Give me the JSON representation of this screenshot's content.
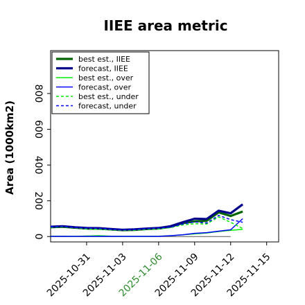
{
  "chart_data": {
    "type": "line",
    "title": "IIEE area metric",
    "xlabel": "",
    "ylabel": "Area (1000km2)",
    "x": [
      "2025-10-28",
      "2025-10-31",
      "2025-11-03",
      "2025-11-06",
      "2025-11-09",
      "2025-11-12"
    ],
    "xticks": [
      "2025-10-31",
      "2025-11-03",
      "2025-11-06",
      "2025-11-09",
      "2025-11-12",
      "2025-11-15"
    ],
    "xtick_colors": [
      "#000000",
      "#000000",
      "#2e8b2e",
      "#000000",
      "#000000",
      "#000000"
    ],
    "xlim": [
      "2025-10-28",
      "2025-11-16"
    ],
    "ylim": [
      -30,
      1040
    ],
    "yticks": [
      0,
      200,
      400,
      600,
      800
    ],
    "grid": false,
    "legend_position": "top-left",
    "reference_line": {
      "y": 0,
      "color": "#555555"
    },
    "series": [
      {
        "name": "best est., IIEE",
        "color": "#006400",
        "style": "solid",
        "width": "thick",
        "points": [
          [
            "2025-10-28",
            52
          ],
          [
            "2025-10-29",
            55
          ],
          [
            "2025-10-30",
            50
          ],
          [
            "2025-10-31",
            45
          ],
          [
            "2025-11-01",
            44
          ],
          [
            "2025-11-02",
            40
          ],
          [
            "2025-11-03",
            36
          ],
          [
            "2025-11-04",
            37
          ],
          [
            "2025-11-05",
            42
          ],
          [
            "2025-11-06",
            45
          ],
          [
            "2025-11-07",
            55
          ],
          [
            "2025-11-08",
            75
          ],
          [
            "2025-11-09",
            85
          ],
          [
            "2025-11-10",
            88
          ],
          [
            "2025-11-11",
            135
          ],
          [
            "2025-11-12",
            115
          ],
          [
            "2025-11-13",
            140
          ]
        ]
      },
      {
        "name": "forecast, IIEE",
        "color": "#00008b",
        "style": "solid",
        "width": "thick",
        "points": [
          [
            "2025-10-28",
            55
          ],
          [
            "2025-10-29",
            58
          ],
          [
            "2025-10-30",
            52
          ],
          [
            "2025-10-31",
            48
          ],
          [
            "2025-11-01",
            47
          ],
          [
            "2025-11-02",
            42
          ],
          [
            "2025-11-03",
            38
          ],
          [
            "2025-11-04",
            40
          ],
          [
            "2025-11-05",
            45
          ],
          [
            "2025-11-06",
            48
          ],
          [
            "2025-11-07",
            58
          ],
          [
            "2025-11-08",
            80
          ],
          [
            "2025-11-09",
            100
          ],
          [
            "2025-11-10",
            98
          ],
          [
            "2025-11-11",
            145
          ],
          [
            "2025-11-12",
            130
          ],
          [
            "2025-11-13",
            180
          ]
        ]
      },
      {
        "name": "best est., over",
        "color": "#00ee00",
        "style": "solid",
        "width": "thin",
        "points": [
          [
            "2025-10-28",
            2
          ],
          [
            "2025-10-29",
            2
          ],
          [
            "2025-10-30",
            1
          ],
          [
            "2025-10-31",
            3
          ],
          [
            "2025-11-01",
            5
          ],
          [
            "2025-11-02",
            2
          ],
          [
            "2025-11-03",
            1
          ],
          [
            "2025-11-04",
            1
          ],
          [
            "2025-11-05",
            1
          ],
          [
            "2025-11-06",
            2
          ],
          [
            "2025-11-07",
            5
          ],
          [
            "2025-11-08",
            10
          ],
          [
            "2025-11-09",
            15
          ],
          [
            "2025-11-10",
            20
          ],
          [
            "2025-11-11",
            28
          ],
          [
            "2025-11-12",
            35
          ],
          [
            "2025-11-13",
            40
          ]
        ]
      },
      {
        "name": "forecast, over",
        "color": "#0000ff",
        "style": "solid",
        "width": "thin",
        "points": [
          [
            "2025-10-28",
            1
          ],
          [
            "2025-10-29",
            1
          ],
          [
            "2025-10-30",
            1
          ],
          [
            "2025-10-31",
            1
          ],
          [
            "2025-11-01",
            1
          ],
          [
            "2025-11-02",
            1
          ],
          [
            "2025-11-03",
            1
          ],
          [
            "2025-11-04",
            1
          ],
          [
            "2025-11-05",
            1
          ],
          [
            "2025-11-06",
            1
          ],
          [
            "2025-11-07",
            5
          ],
          [
            "2025-11-08",
            10
          ],
          [
            "2025-11-09",
            18
          ],
          [
            "2025-11-10",
            22
          ],
          [
            "2025-11-11",
            30
          ],
          [
            "2025-11-12",
            38
          ],
          [
            "2025-11-13",
            100
          ]
        ]
      },
      {
        "name": "best est., under",
        "color": "#00ee00",
        "style": "dashed",
        "width": "thin",
        "points": [
          [
            "2025-10-28",
            52
          ],
          [
            "2025-10-29",
            55
          ],
          [
            "2025-10-30",
            50
          ],
          [
            "2025-10-31",
            43
          ],
          [
            "2025-11-01",
            40
          ],
          [
            "2025-11-02",
            38
          ],
          [
            "2025-11-03",
            35
          ],
          [
            "2025-11-04",
            36
          ],
          [
            "2025-11-05",
            41
          ],
          [
            "2025-11-06",
            43
          ],
          [
            "2025-11-07",
            50
          ],
          [
            "2025-11-08",
            65
          ],
          [
            "2025-11-09",
            72
          ],
          [
            "2025-11-10",
            70
          ],
          [
            "2025-11-11",
            110
          ],
          [
            "2025-11-12",
            80
          ],
          [
            "2025-11-13",
            45
          ]
        ]
      },
      {
        "name": "forecast, under",
        "color": "#0000ff",
        "style": "dashed",
        "width": "thin",
        "points": [
          [
            "2025-10-28",
            54
          ],
          [
            "2025-10-29",
            57
          ],
          [
            "2025-10-30",
            51
          ],
          [
            "2025-10-31",
            47
          ],
          [
            "2025-11-01",
            46
          ],
          [
            "2025-11-02",
            41
          ],
          [
            "2025-11-03",
            37
          ],
          [
            "2025-11-04",
            39
          ],
          [
            "2025-11-05",
            44
          ],
          [
            "2025-11-06",
            47
          ],
          [
            "2025-11-07",
            53
          ],
          [
            "2025-11-08",
            70
          ],
          [
            "2025-11-09",
            82
          ],
          [
            "2025-11-10",
            76
          ],
          [
            "2025-11-11",
            118
          ],
          [
            "2025-11-12",
            95
          ],
          [
            "2025-11-13",
            80
          ]
        ]
      }
    ]
  }
}
